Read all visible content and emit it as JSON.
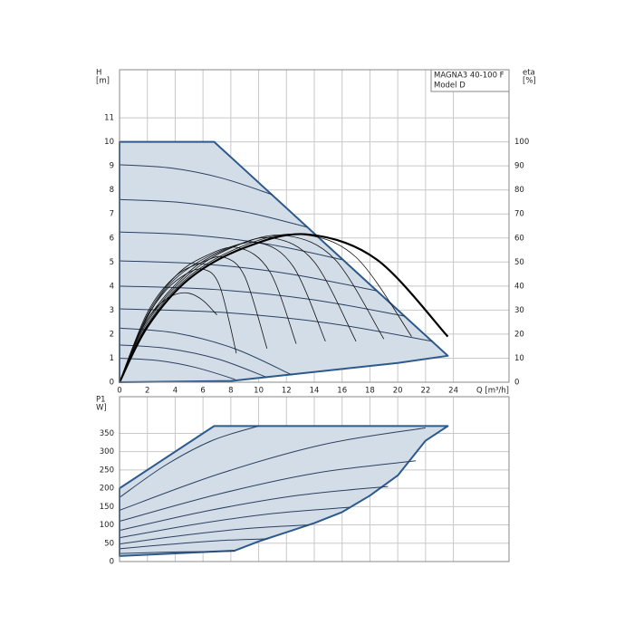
{
  "chart_data": [
    {
      "type": "line",
      "xlabel": "Q [m³/h]",
      "ylabel": [
        "H",
        "[m]"
      ],
      "y2label": [
        "eta",
        "[%]"
      ],
      "annotations": [
        "MAGNA3 40-100 F",
        "Model D"
      ],
      "xlim": [
        0,
        28
      ],
      "xticks": [
        0,
        2,
        4,
        6,
        8,
        10,
        12,
        14,
        16,
        18,
        20,
        22,
        24
      ],
      "ylim": [
        0,
        13
      ],
      "yticks": [
        0,
        1,
        2,
        3,
        4,
        5,
        6,
        7,
        8,
        9,
        10,
        11
      ],
      "y2lim": [
        0,
        130
      ],
      "y2ticks": [
        0,
        10,
        20,
        30,
        40,
        50,
        60,
        70,
        80,
        90,
        100
      ],
      "grid": true,
      "series": [
        {
          "x": [
            0,
            6.8,
            23.6,
            20,
            16,
            12,
            8,
            0
          ],
          "values": [
            10,
            10,
            1.1,
            0.8,
            0.55,
            0.3,
            0.05,
            0
          ],
          "fill": "#d3dde8",
          "color": "#2d5a8c",
          "width": 2
        },
        {
          "x": [
            0,
            3.7,
            7.3,
            11
          ],
          "values": [
            9.05,
            8.91,
            8.5,
            7.8
          ],
          "color": "#2a4060",
          "width": 1
        },
        {
          "x": [
            0,
            4.5,
            9,
            13.5
          ],
          "values": [
            7.6,
            7.47,
            7.09,
            6.45
          ],
          "color": "#2a4060",
          "width": 1
        },
        {
          "x": [
            0,
            5.3,
            10.7,
            16
          ],
          "values": [
            6.25,
            6.12,
            5.74,
            5.1
          ],
          "color": "#2a4060",
          "width": 1
        },
        {
          "x": [
            0,
            6.2,
            12.3,
            18.5
          ],
          "values": [
            5.05,
            4.91,
            4.5,
            3.8
          ],
          "color": "#2a4060",
          "width": 1
        },
        {
          "x": [
            0,
            6.8,
            13.7,
            20.5
          ],
          "values": [
            4.0,
            3.86,
            3.45,
            2.75
          ],
          "color": "#2a4060",
          "width": 1
        },
        {
          "x": [
            0,
            7.5,
            15,
            22.5
          ],
          "values": [
            3.05,
            2.9,
            2.46,
            1.7
          ],
          "color": "#2a4060",
          "width": 1
        },
        {
          "x": [
            0,
            4.1,
            8.3,
            12.4
          ],
          "values": [
            2.25,
            2.04,
            1.39,
            0.3
          ],
          "color": "#2a4060",
          "width": 1
        },
        {
          "x": [
            0,
            3.5,
            7.1,
            10.6
          ],
          "values": [
            1.55,
            1.4,
            0.96,
            0.2
          ],
          "color": "#2a4060",
          "width": 1
        },
        {
          "x": [
            0,
            2.8,
            5.5,
            8.3
          ],
          "values": [
            1.0,
            0.9,
            0.61,
            0.12
          ],
          "color": "#2a4060",
          "width": 1
        },
        {
          "axis": "y2",
          "x": [
            0,
            1,
            2,
            3,
            4,
            5,
            6,
            7
          ],
          "values": [
            0,
            15,
            26,
            33,
            36.5,
            37,
            34,
            28
          ],
          "color": "#111",
          "width": 0.8
        },
        {
          "axis": "y2",
          "x": [
            0,
            1.5,
            3,
            4.5,
            6,
            7.2,
            8.4
          ],
          "values": [
            0,
            22,
            36,
            44,
            47,
            40,
            12
          ],
          "color": "#111",
          "width": 0.8
        },
        {
          "axis": "y2",
          "x": [
            0,
            2,
            4,
            6,
            7.5,
            9,
            10.6
          ],
          "values": [
            0,
            29,
            44,
            50,
            52,
            44,
            14
          ],
          "color": "#111",
          "width": 0.8
        },
        {
          "axis": "y2",
          "x": [
            0,
            2,
            4,
            6,
            8.5,
            10.8,
            12.7
          ],
          "values": [
            0,
            28,
            44,
            52,
            56,
            46,
            16
          ],
          "color": "#111",
          "width": 0.8
        },
        {
          "axis": "y2",
          "x": [
            0,
            2,
            4,
            7,
            10,
            12.5,
            14.8
          ],
          "values": [
            0,
            27,
            43,
            54,
            58,
            48,
            17
          ],
          "color": "#111",
          "width": 0.8
        },
        {
          "axis": "y2",
          "x": [
            0,
            2,
            5,
            8,
            11,
            14,
            17
          ],
          "values": [
            0,
            26,
            46,
            56,
            60,
            50,
            17
          ],
          "color": "#111",
          "width": 0.8
        },
        {
          "axis": "y2",
          "x": [
            0,
            2,
            5,
            8.5,
            12,
            15.5,
            19
          ],
          "values": [
            0,
            25,
            45,
            57,
            61,
            51,
            18
          ],
          "color": "#111",
          "width": 0.8
        },
        {
          "axis": "y2",
          "x": [
            0,
            2,
            5,
            9,
            13,
            17,
            21
          ],
          "values": [
            0,
            24,
            44,
            57,
            61.5,
            52,
            19
          ],
          "color": "#111",
          "width": 0.8
        },
        {
          "axis": "y2",
          "x": [
            0,
            2,
            5,
            9,
            13.5,
            18.5,
            23.6
          ],
          "values": [
            0,
            23,
            43,
            56,
            61.5,
            51,
            19
          ],
          "color": "#000",
          "width": 2.2
        }
      ]
    },
    {
      "type": "line",
      "ylabel": [
        "P1",
        "W]"
      ],
      "xlim": [
        0,
        28
      ],
      "xticks": [
        0,
        2,
        4,
        6,
        8,
        10,
        12,
        14,
        16,
        18,
        20,
        22,
        24
      ],
      "ylim": [
        0,
        450
      ],
      "yticks": [
        0,
        50,
        100,
        150,
        200,
        250,
        300,
        350
      ],
      "grid": true,
      "series": [
        {
          "x": [
            0,
            6.8,
            23.6,
            22,
            20,
            18,
            16,
            14,
            12,
            10,
            8.3,
            0
          ],
          "values": [
            200,
            370,
            370,
            330,
            235,
            180,
            135,
            105,
            80,
            55,
            30,
            15
          ],
          "fill": "#d3dde8",
          "color": "#2d5a8c",
          "width": 2
        },
        {
          "x": [
            0,
            3.3,
            6.7,
            10
          ],
          "values": [
            175,
            263,
            331,
            370
          ],
          "color": "#2a4060",
          "width": 1
        },
        {
          "x": [
            0,
            7.3,
            14.7,
            22
          ],
          "values": [
            140,
            241,
            320,
            365
          ],
          "color": "#2a4060",
          "width": 1
        },
        {
          "x": [
            0,
            7.1,
            14.2,
            21.3
          ],
          "values": [
            110,
            184,
            242,
            275
          ],
          "color": "#2a4060",
          "width": 1
        },
        {
          "x": [
            0,
            6.4,
            12.9,
            19.3
          ],
          "values": [
            85,
            139,
            181,
            205
          ],
          "color": "#2a4060",
          "width": 1
        },
        {
          "x": [
            0,
            5.5,
            11,
            16.5
          ],
          "values": [
            65,
            102,
            131,
            148
          ],
          "color": "#2a4060",
          "width": 1
        },
        {
          "x": [
            0,
            4.5,
            9.1,
            13.6
          ],
          "values": [
            48,
            71,
            90,
            100
          ],
          "color": "#2a4060",
          "width": 1
        },
        {
          "x": [
            0,
            3.6,
            7.1,
            10.7
          ],
          "values": [
            35,
            47,
            57,
            62
          ],
          "color": "#2a4060",
          "width": 1
        },
        {
          "x": [
            0,
            2.8,
            5.5,
            8.3
          ],
          "values": [
            22,
            25,
            27,
            28
          ],
          "color": "#2a4060",
          "width": 1
        }
      ]
    }
  ]
}
